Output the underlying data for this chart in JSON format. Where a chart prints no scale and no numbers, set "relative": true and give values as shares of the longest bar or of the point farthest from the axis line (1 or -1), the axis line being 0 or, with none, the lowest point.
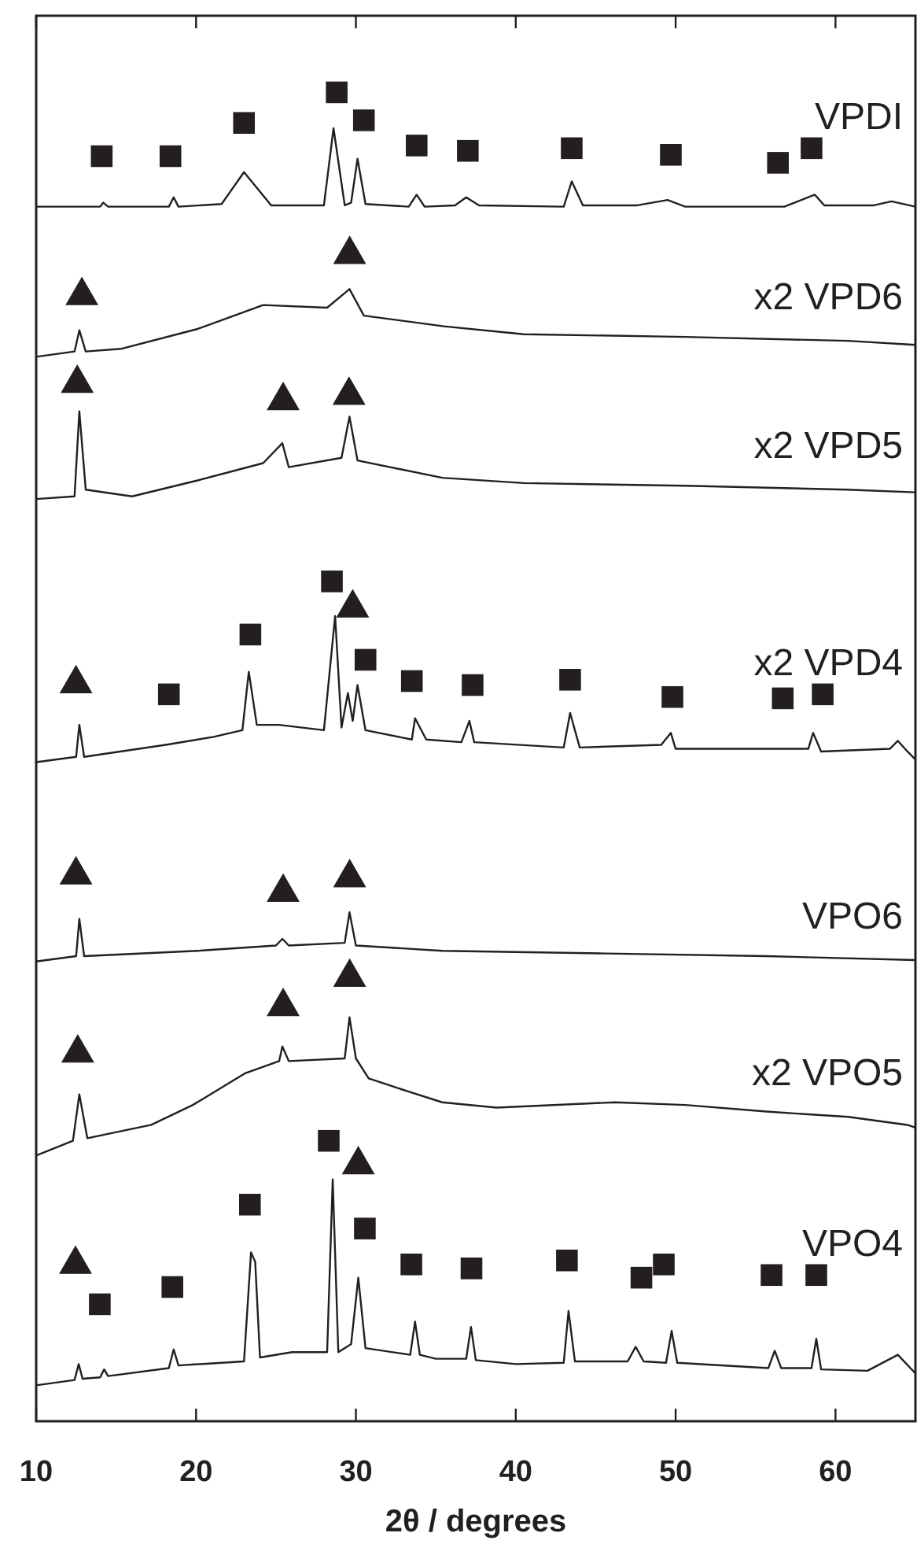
{
  "chart_data": {
    "type": "line",
    "relative": true,
    "xlabel": "2θ / degrees",
    "xlim": [
      10,
      65
    ],
    "xticks": [
      10,
      20,
      30,
      40,
      50,
      60
    ],
    "marker": "none",
    "line_style": "solid",
    "grid": false,
    "legend": false,
    "series": [
      {
        "name": "VPDI",
        "color": "#231f20",
        "x": [
          10,
          14.0,
          14.2,
          14.5,
          18.3,
          18.6,
          18.9,
          21.6,
          23.0,
          24.7,
          28.0,
          28.6,
          29.3,
          29.7,
          30.1,
          30.6,
          33.3,
          33.8,
          34.3,
          36.2,
          36.9,
          37.7,
          43.0,
          43.5,
          44.2,
          47.6,
          49.5,
          50.6,
          56.8,
          58.7,
          59.3,
          62.4,
          63.5,
          65
        ],
        "values": [
          0.914,
          0.914,
          0.917,
          0.914,
          0.914,
          0.921,
          0.914,
          0.916,
          0.94,
          0.915,
          0.915,
          0.973,
          0.915,
          0.917,
          0.95,
          0.916,
          0.914,
          0.923,
          0.914,
          0.915,
          0.921,
          0.915,
          0.914,
          0.933,
          0.915,
          0.915,
          0.919,
          0.914,
          0.914,
          0.923,
          0.915,
          0.915,
          0.918,
          0.914
        ]
      },
      {
        "name": "x2 VPD6",
        "color": "#231f20",
        "x": [
          10,
          12.4,
          12.7,
          13.1,
          15.3,
          20.1,
          24.2,
          28.2,
          29.6,
          30.5,
          35.5,
          40.5,
          50.6,
          60.8,
          65
        ],
        "values": [
          0.801,
          0.805,
          0.821,
          0.805,
          0.807,
          0.822,
          0.84,
          0.838,
          0.852,
          0.832,
          0.824,
          0.818,
          0.816,
          0.813,
          0.81
        ]
      },
      {
        "name": "x2 VPD5",
        "color": "#231f20",
        "x": [
          10,
          12.4,
          12.7,
          13.1,
          16.0,
          20.1,
          24.2,
          25.4,
          25.8,
          29.1,
          29.6,
          30.1,
          35.4,
          40.5,
          50.6,
          60.8,
          65
        ],
        "values": [
          0.694,
          0.696,
          0.76,
          0.701,
          0.696,
          0.708,
          0.721,
          0.736,
          0.718,
          0.725,
          0.756,
          0.723,
          0.71,
          0.706,
          0.704,
          0.701,
          0.699
        ]
      },
      {
        "name": "x2 VPD4",
        "color": "#231f20",
        "x": [
          10,
          12.5,
          12.7,
          13.0,
          18.1,
          21.1,
          22.9,
          23.3,
          23.8,
          25.2,
          28.0,
          28.7,
          29.1,
          29.5,
          29.8,
          30.1,
          30.6,
          33.5,
          33.7,
          34.4,
          36.6,
          37.1,
          37.4,
          43.0,
          43.4,
          44.0,
          49.1,
          49.7,
          50.0,
          58.3,
          58.6,
          59.1,
          63.4,
          63.9,
          64.5,
          65
        ],
        "values": [
          0.496,
          0.5,
          0.524,
          0.5,
          0.509,
          0.515,
          0.52,
          0.564,
          0.524,
          0.524,
          0.52,
          0.606,
          0.522,
          0.548,
          0.527,
          0.554,
          0.52,
          0.513,
          0.529,
          0.513,
          0.511,
          0.527,
          0.511,
          0.507,
          0.533,
          0.507,
          0.509,
          0.518,
          0.506,
          0.506,
          0.518,
          0.504,
          0.506,
          0.512,
          0.504,
          0.498
        ]
      },
      {
        "name": "VPO6",
        "color": "#231f20",
        "x": [
          10,
          12.5,
          12.7,
          13.0,
          20.1,
          25.0,
          25.4,
          25.8,
          29.3,
          29.6,
          30.0,
          35.4,
          45.6,
          55.7,
          65
        ],
        "values": [
          0.346,
          0.35,
          0.378,
          0.35,
          0.354,
          0.358,
          0.363,
          0.358,
          0.36,
          0.383,
          0.358,
          0.354,
          0.352,
          0.35,
          0.347
        ]
      },
      {
        "name": "x2 VPO5",
        "color": "#231f20",
        "x": [
          10,
          12.3,
          12.7,
          13.2,
          17.2,
          19.8,
          23.1,
          25.2,
          25.4,
          25.8,
          29.3,
          29.6,
          30.0,
          30.8,
          33.3,
          35.4,
          38.8,
          46.2,
          50.6,
          55.7,
          60.8,
          64.5,
          65
        ],
        "values": [
          0.2,
          0.211,
          0.246,
          0.213,
          0.223,
          0.238,
          0.262,
          0.271,
          0.282,
          0.271,
          0.273,
          0.304,
          0.273,
          0.258,
          0.248,
          0.24,
          0.236,
          0.24,
          0.238,
          0.233,
          0.229,
          0.223,
          0.221
        ]
      },
      {
        "name": "VPO4",
        "color": "#231f20",
        "x": [
          10,
          12.4,
          12.66,
          12.9,
          14.0,
          14.25,
          14.5,
          18.3,
          18.6,
          18.9,
          23.0,
          23.44,
          23.7,
          24.0,
          26,
          28.2,
          28.55,
          28.9,
          29.7,
          30.15,
          30.6,
          33.4,
          33.7,
          34.0,
          35,
          36.9,
          37.2,
          37.5,
          40,
          43.0,
          43.3,
          43.7,
          47,
          47.5,
          48,
          49.4,
          49.75,
          50.1,
          55.8,
          56.2,
          56.6,
          58.5,
          58.8,
          59.1,
          62,
          63.9,
          65
        ],
        "values": [
          0.027,
          0.031,
          0.043,
          0.032,
          0.033,
          0.039,
          0.034,
          0.04,
          0.054,
          0.042,
          0.045,
          0.127,
          0.12,
          0.048,
          0.052,
          0.052,
          0.182,
          0.052,
          0.058,
          0.108,
          0.055,
          0.05,
          0.075,
          0.05,
          0.047,
          0.047,
          0.071,
          0.046,
          0.043,
          0.044,
          0.083,
          0.045,
          0.045,
          0.056,
          0.045,
          0.044,
          0.068,
          0.044,
          0.04,
          0.053,
          0.04,
          0.04,
          0.062,
          0.039,
          0.038,
          0.05,
          0.036
        ]
      },
      {
        "type": "scatter",
        "marker": "square",
        "color": "#231f20",
        "x": [
          14.1,
          18.4,
          23.0,
          28.8,
          30.5,
          33.8,
          37.0,
          43.5,
          49.7,
          56.4,
          58.5,
          18.3,
          23.4,
          28.5,
          30.6,
          33.5,
          37.3,
          43.4,
          49.8,
          56.7,
          59.2,
          13.98,
          18.52,
          23.37,
          28.3,
          30.56,
          33.47,
          37.23,
          43.2,
          47.86,
          49.26,
          56.0,
          58.8
        ],
        "values": [
          0.952,
          0.952,
          0.977,
          1.0,
          0.979,
          0.96,
          0.956,
          0.958,
          0.953,
          0.947,
          0.958,
          0.547,
          0.592,
          0.632,
          0.573,
          0.557,
          0.554,
          0.558,
          0.545,
          0.544,
          0.547,
          0.088,
          0.101,
          0.163,
          0.211,
          0.145,
          0.118,
          0.115,
          0.121,
          0.108,
          0.118,
          0.11,
          0.11
        ]
      },
      {
        "type": "scatter",
        "marker": "triangle",
        "color": "#231f20",
        "x": [
          12.86,
          29.61,
          12.57,
          25.45,
          29.57,
          12.49,
          29.8,
          12.49,
          25.45,
          29.61,
          12.6,
          25.45,
          29.61,
          12.46,
          30.15
        ],
        "values": [
          0.847,
          0.878,
          0.781,
          0.768,
          0.772,
          0.555,
          0.612,
          0.411,
          0.398,
          0.409,
          0.277,
          0.312,
          0.334,
          0.118,
          0.193
        ]
      }
    ]
  }
}
